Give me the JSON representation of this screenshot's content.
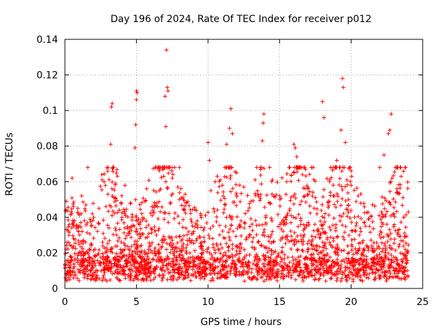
{
  "chart_data": {
    "type": "scatter",
    "title": "Day 196 of 2024, Rate Of TEC Index for receiver p012",
    "xlabel": "GPS time / hours",
    "ylabel": "ROTI / TECUs",
    "xlim": [
      0,
      25
    ],
    "ylim": [
      0,
      0.14
    ],
    "x_ticks": [
      0,
      5,
      10,
      15,
      20,
      25
    ],
    "x_tick_labels": [
      "0",
      "5",
      "10",
      "15",
      "20",
      "25"
    ],
    "y_ticks": [
      0,
      0.02,
      0.04,
      0.06,
      0.08,
      0.1,
      0.12,
      0.14
    ],
    "y_tick_labels": [
      "0",
      "0.02",
      "0.04",
      "0.06",
      "0.08",
      "0.1",
      "0.12",
      "0.14"
    ],
    "grid": true,
    "marker": "+",
    "marker_color": "#ff0000",
    "data_coverage_hours": [
      0,
      24
    ],
    "series": [
      {
        "name": "ROTI",
        "x": [
          0.1,
          0.3,
          0.5,
          0.9,
          1.2,
          1.6,
          2.0,
          2.6,
          3.0,
          3.2,
          3.25,
          3.3,
          3.8,
          4.2,
          4.6,
          4.9,
          4.95,
          5.0,
          5.0,
          5.05,
          5.6,
          6.1,
          6.6,
          6.9,
          7.0,
          7.05,
          7.1,
          7.15,
          7.2,
          7.5,
          8.0,
          8.5,
          9.0,
          9.5,
          10.0,
          10.1,
          10.2,
          10.5,
          11.0,
          11.3,
          11.5,
          11.6,
          11.7,
          12.0,
          12.5,
          13.0,
          13.5,
          13.8,
          13.85,
          13.9,
          14.5,
          15.0,
          15.5,
          16.0,
          16.1,
          16.2,
          16.6,
          17.0,
          17.5,
          18.0,
          18.1,
          18.5,
          19.0,
          19.3,
          19.4,
          19.45,
          19.6,
          20.0,
          20.5,
          21.0,
          21.5,
          22.0,
          22.3,
          22.6,
          22.7,
          22.8,
          23.2,
          23.5,
          23.8,
          24.0
        ],
        "y": [
          0.049,
          0.036,
          0.062,
          0.045,
          0.032,
          0.068,
          0.04,
          0.061,
          0.053,
          0.081,
          0.102,
          0.104,
          0.044,
          0.058,
          0.048,
          0.079,
          0.092,
          0.106,
          0.111,
          0.11,
          0.049,
          0.041,
          0.055,
          0.063,
          0.108,
          0.091,
          0.134,
          0.113,
          0.111,
          0.062,
          0.05,
          0.048,
          0.032,
          0.041,
          0.082,
          0.072,
          0.055,
          0.06,
          0.058,
          0.081,
          0.09,
          0.101,
          0.087,
          0.065,
          0.057,
          0.049,
          0.053,
          0.083,
          0.093,
          0.098,
          0.061,
          0.052,
          0.06,
          0.081,
          0.079,
          0.074,
          0.064,
          0.053,
          0.051,
          0.105,
          0.096,
          0.061,
          0.072,
          0.089,
          0.118,
          0.113,
          0.082,
          0.058,
          0.052,
          0.035,
          0.047,
          0.068,
          0.075,
          0.087,
          0.089,
          0.098,
          0.056,
          0.063,
          0.068,
          0.043
        ]
      }
    ]
  }
}
